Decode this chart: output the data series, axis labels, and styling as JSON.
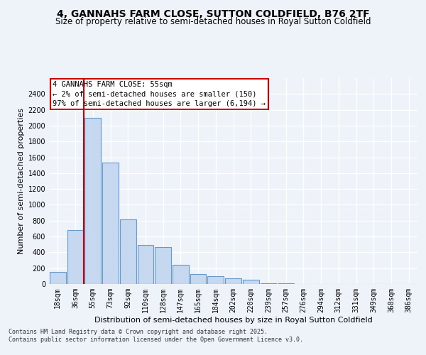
{
  "title1": "4, GANNAHS FARM CLOSE, SUTTON COLDFIELD, B76 2TF",
  "title2": "Size of property relative to semi-detached houses in Royal Sutton Coldfield",
  "xlabel": "Distribution of semi-detached houses by size in Royal Sutton Coldfield",
  "ylabel": "Number of semi-detached properties",
  "categories": [
    "18sqm",
    "36sqm",
    "55sqm",
    "73sqm",
    "92sqm",
    "110sqm",
    "128sqm",
    "147sqm",
    "165sqm",
    "184sqm",
    "202sqm",
    "220sqm",
    "239sqm",
    "257sqm",
    "276sqm",
    "294sqm",
    "312sqm",
    "331sqm",
    "349sqm",
    "368sqm",
    "386sqm"
  ],
  "values": [
    155,
    680,
    2100,
    1530,
    820,
    490,
    470,
    240,
    130,
    95,
    70,
    50,
    10,
    5,
    2,
    0,
    0,
    0,
    0,
    1,
    0
  ],
  "bar_color": "#c5d8f0",
  "bar_edge_color": "#6699cc",
  "annotation_title": "4 GANNAHS FARM CLOSE: 55sqm",
  "annotation_line1": "← 2% of semi-detached houses are smaller (150)",
  "annotation_line2": "97% of semi-detached houses are larger (6,194) →",
  "annotation_box_color": "#ffffff",
  "annotation_box_edge_color": "#cc0000",
  "vline_color": "#cc0000",
  "ylim": [
    0,
    2600
  ],
  "yticks": [
    0,
    200,
    400,
    600,
    800,
    1000,
    1200,
    1400,
    1600,
    1800,
    2000,
    2200,
    2400
  ],
  "background_color": "#eef2f9",
  "grid_color": "#ffffff",
  "footnote1": "Contains HM Land Registry data © Crown copyright and database right 2025.",
  "footnote2": "Contains public sector information licensed under the Open Government Licence v3.0.",
  "title1_fontsize": 10,
  "title2_fontsize": 8.5,
  "axis_fontsize": 8,
  "tick_fontsize": 7,
  "annot_fontsize": 7.5,
  "footnote_fontsize": 6
}
